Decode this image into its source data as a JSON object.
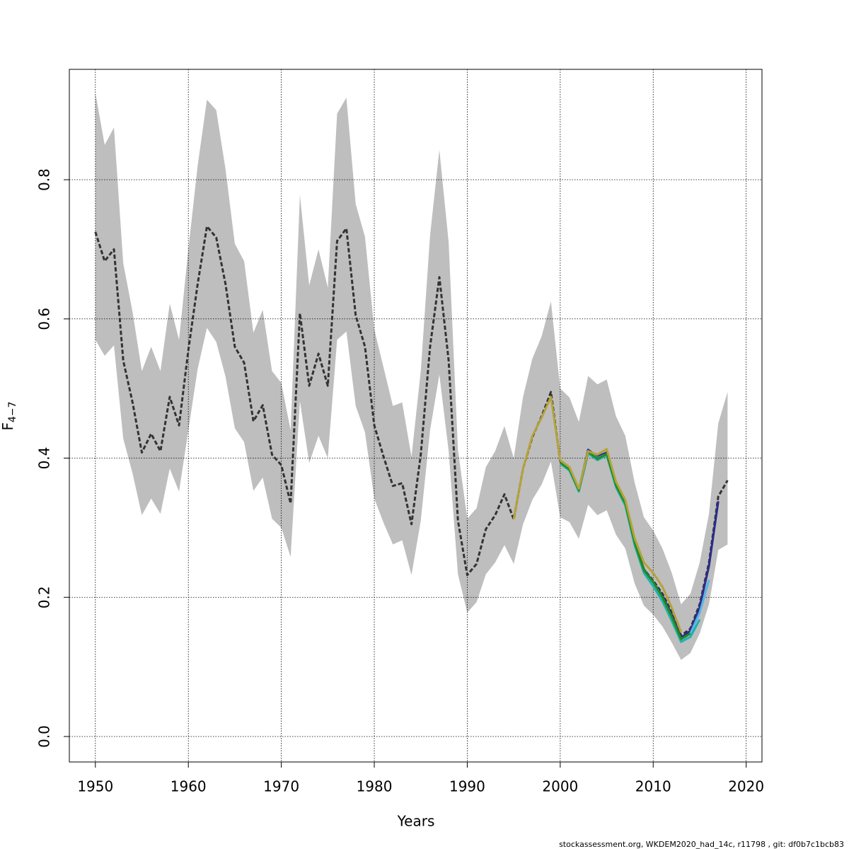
{
  "chart_data": {
    "type": "line",
    "xlabel": "Years",
    "ylabel": "F",
    "ylabel_sub": "4−7",
    "footer": "stockassessment.org, WKDEM2020_had_14c, r11798 , git: df0b7c1bcb83",
    "xlim": [
      1947.2,
      2021.7
    ],
    "ylim": [
      -0.0366,
      0.9586
    ],
    "xticks": [
      1950,
      1960,
      1970,
      1980,
      1990,
      2000,
      2010,
      2020
    ],
    "yticks": [
      {
        "value": 0,
        "label": "0.0"
      },
      0.2,
      0.4,
      0.6,
      0.8
    ],
    "grid": true,
    "x": [
      1950,
      1951,
      1952,
      1953,
      1954,
      1955,
      1956,
      1957,
      1958,
      1959,
      1960,
      1961,
      1962,
      1963,
      1964,
      1965,
      1966,
      1967,
      1968,
      1969,
      1970,
      1971,
      1972,
      1973,
      1974,
      1975,
      1976,
      1977,
      1978,
      1979,
      1980,
      1981,
      1982,
      1983,
      1984,
      1985,
      1986,
      1987,
      1988,
      1989,
      1990,
      1991,
      1992,
      1993,
      1994,
      1995,
      1996,
      1997,
      1998,
      1999,
      2000,
      2001,
      2002,
      2003,
      2004,
      2005,
      2006,
      2007,
      2008,
      2009,
      2010,
      2011,
      2012,
      2013,
      2014,
      2015,
      2016,
      2017,
      2018
    ],
    "band": {
      "color": "#bebebe",
      "upper": [
        0.925,
        0.85,
        0.875,
        0.68,
        0.61,
        0.525,
        0.56,
        0.525,
        0.622,
        0.57,
        0.7,
        0.82,
        0.915,
        0.9,
        0.815,
        0.708,
        0.683,
        0.58,
        0.613,
        0.525,
        0.508,
        0.44,
        0.778,
        0.648,
        0.7,
        0.645,
        0.895,
        0.918,
        0.765,
        0.718,
        0.585,
        0.53,
        0.475,
        0.48,
        0.402,
        0.525,
        0.72,
        0.843,
        0.71,
        0.412,
        0.313,
        0.328,
        0.387,
        0.41,
        0.446,
        0.4,
        0.488,
        0.543,
        0.575,
        0.625,
        0.5,
        0.487,
        0.452,
        0.518,
        0.506,
        0.513,
        0.46,
        0.432,
        0.365,
        0.315,
        0.296,
        0.27,
        0.235,
        0.19,
        0.205,
        0.25,
        0.32,
        0.45,
        0.495
      ],
      "lower": [
        0.57,
        0.547,
        0.562,
        0.428,
        0.378,
        0.318,
        0.342,
        0.32,
        0.385,
        0.352,
        0.44,
        0.528,
        0.587,
        0.567,
        0.517,
        0.443,
        0.423,
        0.353,
        0.372,
        0.313,
        0.3,
        0.258,
        0.482,
        0.393,
        0.432,
        0.4,
        0.57,
        0.582,
        0.475,
        0.437,
        0.342,
        0.307,
        0.276,
        0.282,
        0.232,
        0.31,
        0.44,
        0.52,
        0.41,
        0.233,
        0.178,
        0.193,
        0.233,
        0.25,
        0.275,
        0.248,
        0.305,
        0.34,
        0.362,
        0.395,
        0.315,
        0.308,
        0.284,
        0.333,
        0.318,
        0.325,
        0.29,
        0.27,
        0.22,
        0.188,
        0.175,
        0.158,
        0.135,
        0.11,
        0.12,
        0.148,
        0.19,
        0.268,
        0.276
      ]
    },
    "series": [
      {
        "color": "#333333",
        "dash": true,
        "values": [
          0.725,
          0.683,
          0.7,
          0.54,
          0.48,
          0.408,
          0.435,
          0.41,
          0.488,
          0.447,
          0.555,
          0.65,
          0.733,
          0.717,
          0.65,
          0.56,
          0.537,
          0.453,
          0.476,
          0.405,
          0.39,
          0.335,
          0.608,
          0.504,
          0.55,
          0.504,
          0.712,
          0.73,
          0.605,
          0.56,
          0.447,
          0.402,
          0.36,
          0.364,
          0.305,
          0.405,
          0.56,
          0.66,
          0.54,
          0.31,
          0.232,
          0.248,
          0.298,
          0.318,
          0.348,
          0.312,
          0.385,
          0.43,
          0.46,
          0.495,
          0.395,
          0.385,
          0.354,
          0.412,
          0.402,
          0.408,
          0.362,
          0.336,
          0.28,
          0.24,
          0.224,
          0.205,
          0.178,
          0.145,
          0.155,
          0.19,
          0.25,
          0.345,
          0.368
        ]
      },
      {
        "color": "#2b2b8c",
        "x": [
          2000,
          2001,
          2002,
          2003,
          2004,
          2005,
          2006,
          2007,
          2008,
          2009,
          2010,
          2011,
          2012,
          2013,
          2014,
          2015,
          2016,
          2017
        ],
        "values": [
          0.395,
          0.385,
          0.354,
          0.412,
          0.402,
          0.408,
          0.362,
          0.336,
          0.28,
          0.24,
          0.222,
          0.202,
          0.175,
          0.142,
          0.152,
          0.186,
          0.245,
          0.338
        ]
      },
      {
        "color": "#56b4e9",
        "x": [
          2000,
          2001,
          2002,
          2003,
          2004,
          2005,
          2006,
          2007,
          2008,
          2009,
          2010,
          2011,
          2012,
          2013,
          2014,
          2015,
          2016
        ],
        "values": [
          0.394,
          0.384,
          0.354,
          0.41,
          0.4,
          0.406,
          0.36,
          0.334,
          0.278,
          0.238,
          0.22,
          0.198,
          0.17,
          0.138,
          0.148,
          0.178,
          0.225
        ]
      },
      {
        "color": "#20b2aa",
        "x": [
          2000,
          2001,
          2002,
          2003,
          2004,
          2005,
          2006,
          2007,
          2008,
          2009,
          2010,
          2011,
          2012,
          2013,
          2014,
          2015
        ],
        "values": [
          0.392,
          0.382,
          0.352,
          0.407,
          0.397,
          0.404,
          0.358,
          0.332,
          0.275,
          0.235,
          0.216,
          0.194,
          0.166,
          0.136,
          0.143,
          0.168
        ]
      },
      {
        "color": "#228b22",
        "x": [
          2000,
          2001,
          2002,
          2003,
          2004,
          2005,
          2006,
          2007,
          2008,
          2009,
          2010,
          2011,
          2012,
          2013,
          2014
        ],
        "values": [
          0.394,
          0.384,
          0.354,
          0.409,
          0.399,
          0.406,
          0.361,
          0.335,
          0.279,
          0.239,
          0.222,
          0.2,
          0.172,
          0.14,
          0.148
        ]
      },
      {
        "color": "#b5a33a",
        "x": [
          1995,
          1996,
          1997,
          1998,
          1999,
          2000,
          2001,
          2002,
          2003,
          2004,
          2005,
          2006,
          2007,
          2008,
          2009,
          2010,
          2011,
          2012,
          2013
        ],
        "values": [
          0.312,
          0.385,
          0.432,
          0.458,
          0.488,
          0.397,
          0.387,
          0.356,
          0.41,
          0.405,
          0.413,
          0.366,
          0.34,
          0.285,
          0.25,
          0.235,
          0.215,
          0.185,
          0.15
        ]
      }
    ]
  }
}
